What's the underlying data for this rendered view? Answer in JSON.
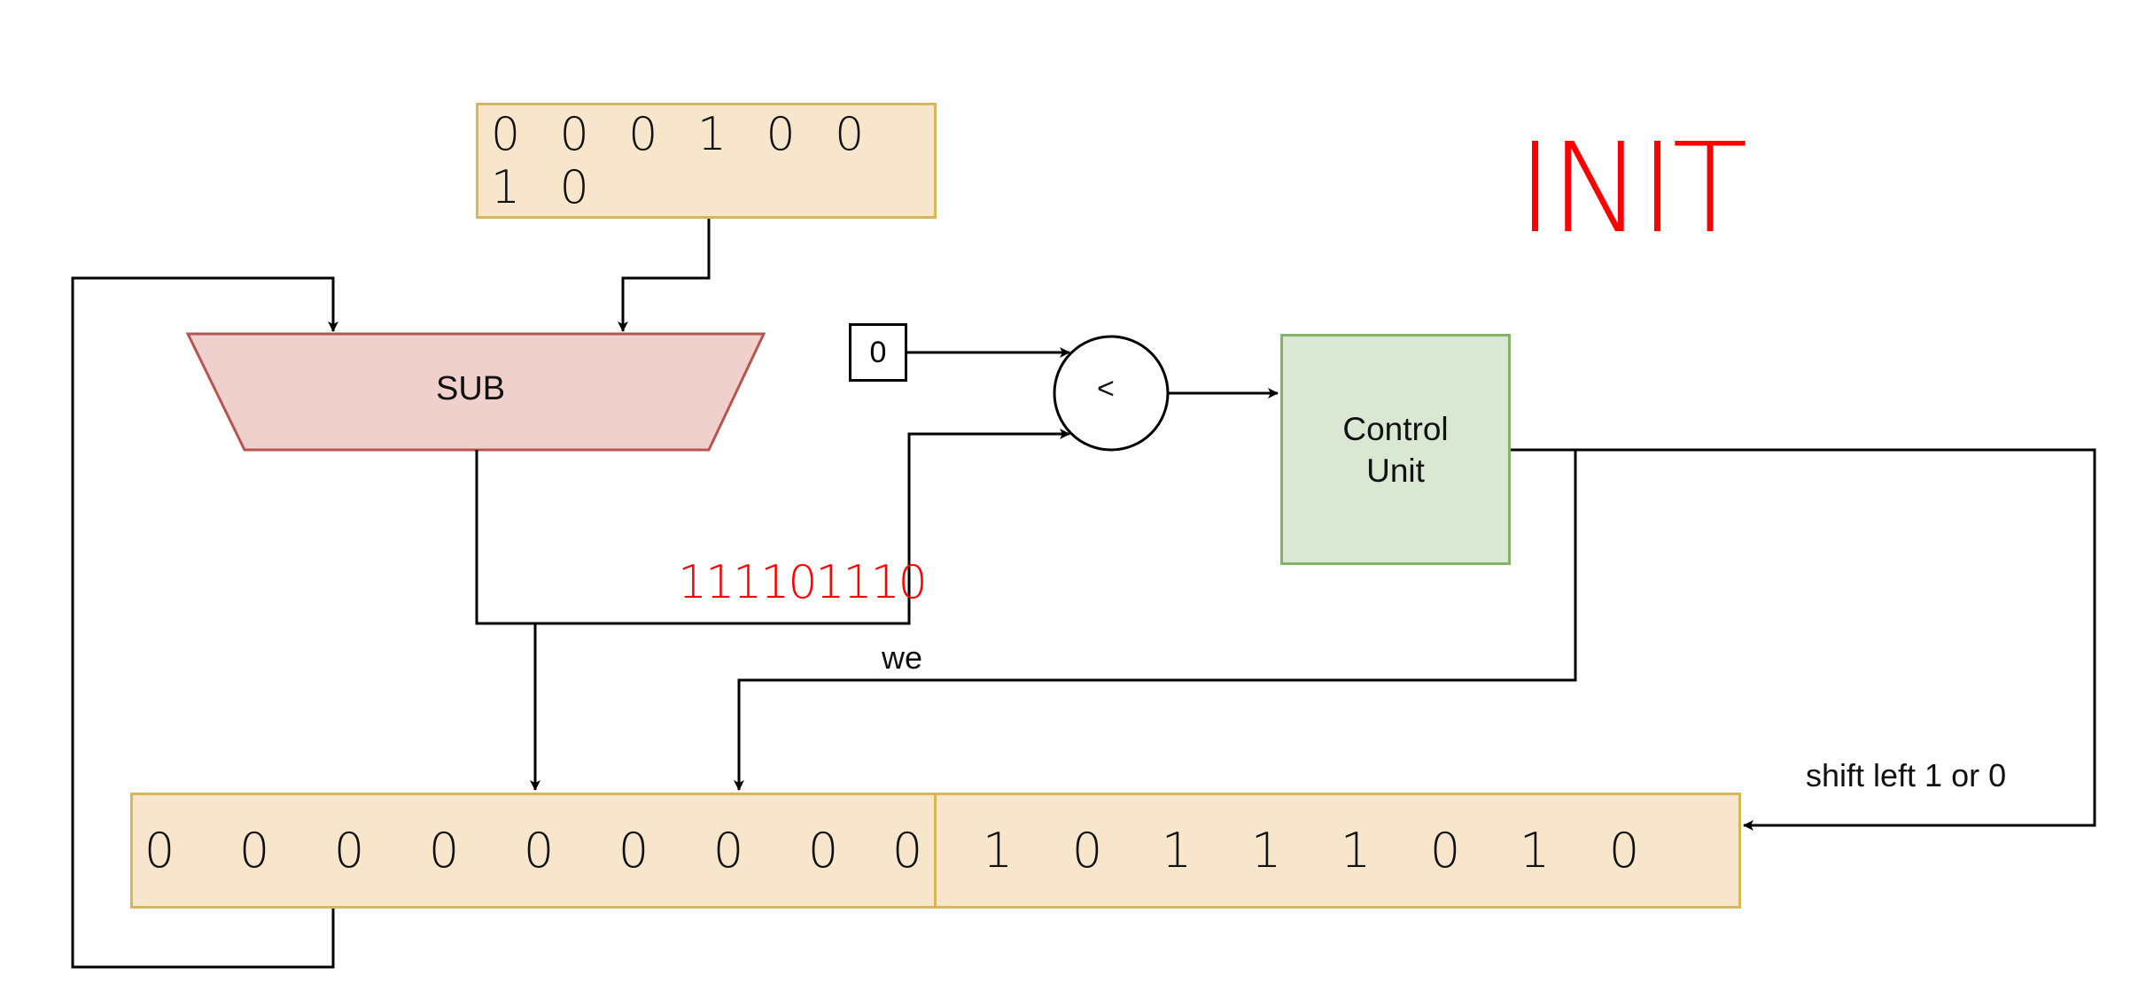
{
  "state_title": "INIT",
  "divisor_register": {
    "bits": "0 0 0 1 0 0 1 0"
  },
  "subtractor": {
    "label": "SUB"
  },
  "comparator": {
    "symbol": "<"
  },
  "constant_zero": {
    "value": "0"
  },
  "control_unit": {
    "line1": "Control",
    "line2": "Unit"
  },
  "difference_value": "111101110",
  "write_enable_label": "we",
  "shift_label": "shift left 1 or 0",
  "remainder_register": {
    "bits": [
      "0",
      "0",
      "0",
      "0",
      "0",
      "0",
      "0",
      "0",
      "0"
    ]
  },
  "quotient_register": {
    "bits": [
      "1",
      "0",
      "1",
      "1",
      "1",
      "0",
      "1",
      "0"
    ]
  },
  "colors": {
    "register_fill": "#f8e6cc",
    "register_border": "#d6b656",
    "sub_fill": "#f0d0cd",
    "sub_border": "#b85450",
    "control_fill": "#dae8d3",
    "control_border": "#82b366",
    "highlight": "#ff0000"
  }
}
